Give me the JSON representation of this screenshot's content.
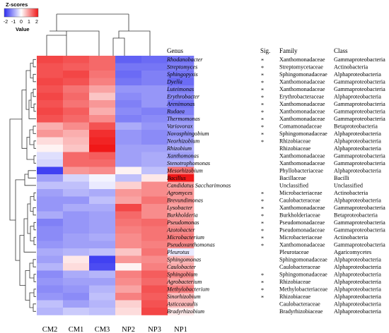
{
  "chart_data": {
    "type": "heatmap",
    "legend": {
      "title": "Z-scores",
      "ticks": [
        "-2",
        "-1",
        "0",
        "1",
        "2"
      ],
      "min": -2,
      "max": 2,
      "label": "Value",
      "colors": {
        "low": "#2c2cf0",
        "mid": "#ffffff",
        "high": "#f01818"
      }
    },
    "columns": [
      "CM2",
      "CM1",
      "CM3",
      "NP2",
      "NP3",
      "NP1"
    ],
    "headers": {
      "genus": "Genus",
      "sig": "Sig.",
      "family": "Family",
      "class": "Class"
    },
    "rows": [
      {
        "genus": "Rhodanobacter",
        "sig": "*",
        "family": "Xanthomonadaceae",
        "class": "Gammaproteobacteria",
        "values": [
          1.6,
          1.5,
          1.3,
          -1.5,
          -1.4,
          -1.3
        ]
      },
      {
        "genus": "Streptomyces",
        "sig": "*",
        "family": "Streptomycetaceae",
        "class": "Actinobacteria",
        "values": [
          1.5,
          1.4,
          1.3,
          -1.3,
          -1.3,
          -1.2
        ]
      },
      {
        "genus": "Sphingopyxis",
        "sig": "*",
        "family": "Sphingomonadaceae",
        "class": "Alphaproteobacteria",
        "values": [
          1.5,
          1.6,
          1.2,
          -1.4,
          -1.2,
          -1.3
        ]
      },
      {
        "genus": "Dyella",
        "sig": "*",
        "family": "Xanthomonadaceae",
        "class": "Gammaproteobacteria",
        "values": [
          1.6,
          1.5,
          1.1,
          -1.3,
          -1.2,
          -1.4
        ]
      },
      {
        "genus": "Luteimonas",
        "sig": "*",
        "family": "Xanthomonadaceae",
        "class": "Gammaproteobacteria",
        "values": [
          1.5,
          1.2,
          0.8,
          -1.0,
          -1.0,
          -1.2
        ]
      },
      {
        "genus": "Erythrobacter",
        "sig": "*",
        "family": "Erythrobacteraceae",
        "class": "Alphaproteobacteria",
        "values": [
          1.6,
          1.3,
          0.5,
          -1.1,
          -1.0,
          -1.1
        ]
      },
      {
        "genus": "Arenimonas",
        "sig": "*",
        "family": "Xanthomonadaceae",
        "class": "Gammaproteobacteria",
        "values": [
          1.5,
          1.2,
          0.9,
          -1.2,
          -1.0,
          -1.3
        ]
      },
      {
        "genus": "Rudaea",
        "sig": "*",
        "family": "Xanthomonadaceae",
        "class": "Gammaproteobacteria",
        "values": [
          1.6,
          1.4,
          0.7,
          -1.1,
          -1.2,
          -1.2
        ]
      },
      {
        "genus": "Thermomonas",
        "sig": "*",
        "family": "Xanthomonadaceae",
        "class": "Gammaproteobacteria",
        "values": [
          1.5,
          1.3,
          1.0,
          -1.2,
          -1.1,
          -1.0
        ]
      },
      {
        "genus": "Variovorax",
        "sig": "*",
        "family": "Comamonadaceae",
        "class": "Betaproteobacteria",
        "values": [
          0.7,
          1.0,
          1.5,
          -0.8,
          -1.0,
          -0.9
        ]
      },
      {
        "genus": "Novosphingobium",
        "sig": "*",
        "family": "Sphingomonadaceae",
        "class": "Alphaproteobacteria",
        "values": [
          0.9,
          0.7,
          1.8,
          -1.0,
          -1.1,
          -1.0
        ]
      },
      {
        "genus": "Neorhizobium",
        "sig": "*",
        "family": "Rhizobiaceae",
        "class": "Alphaproteobacteria",
        "values": [
          0.3,
          0.6,
          1.9,
          -1.0,
          -1.1,
          -0.9
        ]
      },
      {
        "genus": "Rhizobium",
        "sig": "",
        "family": "Rhizobiaceae",
        "class": "Alphaproteobacteria",
        "values": [
          0.1,
          0.5,
          2.0,
          -0.9,
          -0.9,
          -0.8
        ]
      },
      {
        "genus": "Xanthomonas",
        "sig": "",
        "family": "Xanthomonadaceae",
        "class": "Gammaproteobacteria",
        "values": [
          -0.3,
          1.3,
          1.4,
          -0.9,
          -0.8,
          -0.9
        ]
      },
      {
        "genus": "Stenotrophomonas",
        "sig": "",
        "family": "Xanthomonadaceae",
        "class": "Gammaproteobacteria",
        "values": [
          -0.4,
          1.3,
          1.3,
          -0.9,
          -0.8,
          -0.7
        ]
      },
      {
        "genus": "Mesorhizobium",
        "sig": "",
        "family": "Phyllobacteriaceae",
        "class": "Alphaproteobacteria",
        "values": [
          -1.8,
          0.9,
          1.0,
          0.1,
          -0.6,
          1.2
        ]
      },
      {
        "genus": "Bacillus",
        "sig": "",
        "family": "Bacillaceae",
        "class": "Bacilli",
        "values": [
          -0.9,
          -0.4,
          -0.1,
          -0.6,
          0.2,
          2.0
        ]
      },
      {
        "genus": "Candidatus Saccharimonas",
        "sig": "",
        "family": "Unclassified",
        "class": "Unclassified",
        "values": [
          -0.6,
          -0.6,
          -0.2,
          0.4,
          1.0,
          0.8
        ]
      },
      {
        "genus": "Agromyces",
        "sig": "*",
        "family": "Microbacteriaceae",
        "class": "Actinobacteria",
        "values": [
          -0.9,
          -0.7,
          -0.8,
          0.9,
          1.0,
          0.9
        ]
      },
      {
        "genus": "Brevundimonas",
        "sig": "*",
        "family": "Caulobacteraceae",
        "class": "Alphaproteobacteria",
        "values": [
          -1.0,
          -1.0,
          -0.6,
          0.8,
          1.2,
          0.9
        ]
      },
      {
        "genus": "Lysobacter",
        "sig": "*",
        "family": "Xanthomonadaceae",
        "class": "Gammaproteobacteria",
        "values": [
          -1.0,
          -0.8,
          -0.8,
          1.6,
          1.0,
          0.8
        ]
      },
      {
        "genus": "Burkholderia",
        "sig": "*",
        "family": "Burkholderiaceae",
        "class": "Betaproteobacteria",
        "values": [
          -0.8,
          -1.0,
          -0.9,
          1.3,
          1.0,
          0.8
        ]
      },
      {
        "genus": "Pseudomonas",
        "sig": "*",
        "family": "Pseudomonadaceae",
        "class": "Gammaproteobacteria",
        "values": [
          -1.2,
          -1.0,
          -0.9,
          1.2,
          1.3,
          0.9
        ]
      },
      {
        "genus": "Azotobacter",
        "sig": "*",
        "family": "Pseudomonadaceae",
        "class": "Gammaproteobacteria",
        "values": [
          -1.1,
          -1.0,
          -0.9,
          1.1,
          1.2,
          1.0
        ]
      },
      {
        "genus": "Microbacterium",
        "sig": "*",
        "family": "Microbacteriaceae",
        "class": "Actinobacteria",
        "values": [
          -1.1,
          -0.9,
          -0.8,
          1.0,
          1.2,
          1.1
        ]
      },
      {
        "genus": "Pseudoxanthomonas",
        "sig": "*",
        "family": "Xanthomonadaceae",
        "class": "Gammaproteobacteria",
        "values": [
          -1.0,
          -0.9,
          -0.9,
          1.0,
          1.1,
          1.0
        ]
      },
      {
        "genus": "Pleurotus",
        "sig": "",
        "family": "Pleurotaceae",
        "class": "Agaricomycetes",
        "values": [
          -0.8,
          -0.7,
          -0.6,
          0.5,
          1.2,
          -0.2
        ]
      },
      {
        "genus": "Sphingomonas",
        "sig": "",
        "family": "Sphingomonadaceae",
        "class": "Alphaproteobacteria",
        "values": [
          -0.9,
          0.2,
          -1.8,
          0.9,
          1.0,
          0.6
        ]
      },
      {
        "genus": "Caulobacter",
        "sig": "",
        "family": "Caulobacteraceae",
        "class": "Alphaproteobacteria",
        "values": [
          -0.7,
          0.3,
          -1.7,
          0.1,
          1.1,
          0.7
        ]
      },
      {
        "genus": "Sphingobium",
        "sig": "*",
        "family": "Sphingomonadaceae",
        "class": "Alphaproteobacteria",
        "values": [
          -1.1,
          -0.8,
          -0.7,
          1.1,
          1.4,
          1.0
        ]
      },
      {
        "genus": "Agrobacterium",
        "sig": "*",
        "family": "Rhizobiaceae",
        "class": "Alphaproteobacteria",
        "values": [
          -1.0,
          -0.9,
          -0.9,
          1.0,
          1.3,
          0.8
        ]
      },
      {
        "genus": "Methylobacterium",
        "sig": "*",
        "family": "Methylobacteriaceae",
        "class": "Alphaproteobacteria",
        "values": [
          -1.1,
          -1.0,
          -0.7,
          0.8,
          1.5,
          1.1
        ]
      },
      {
        "genus": "Sinorhizobium",
        "sig": "*",
        "family": "Rhizobiaceae",
        "class": "Alphaproteobacteria",
        "values": [
          -1.0,
          -1.1,
          -0.6,
          1.1,
          1.4,
          0.6
        ]
      },
      {
        "genus": "Asticcacaulis",
        "sig": "",
        "family": "Caulobacteraceae",
        "class": "Alphaproteobacteria",
        "values": [
          -0.6,
          -0.9,
          -0.7,
          0.4,
          1.5,
          0.6
        ]
      },
      {
        "genus": "Bradyrhizobium",
        "sig": "",
        "family": "Bradyrhizobiaceae",
        "class": "Alphaproteobacteria",
        "values": [
          -0.7,
          -0.5,
          -0.6,
          0.3,
          1.6,
          0.2
        ]
      }
    ]
  }
}
